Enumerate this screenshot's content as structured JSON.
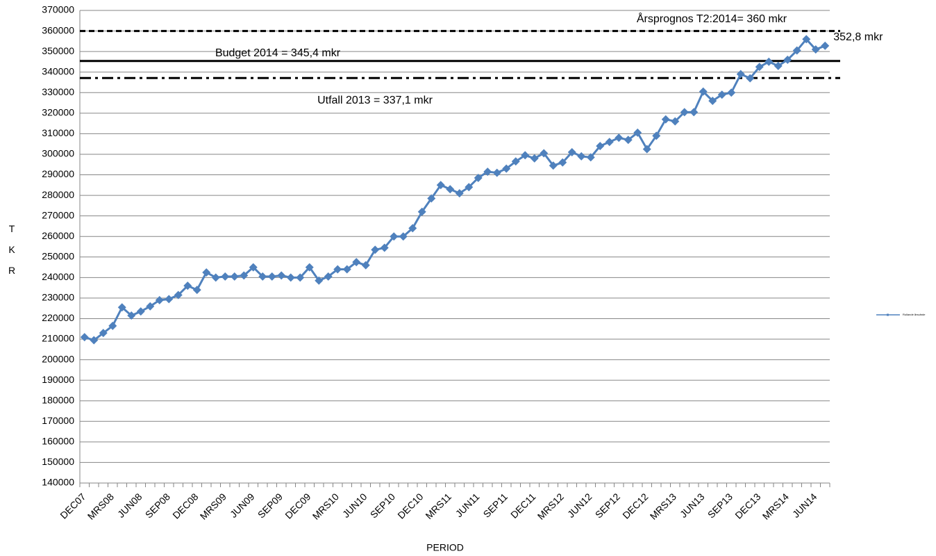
{
  "chart_data": {
    "type": "line",
    "x_label": "PERIOD",
    "y_label": "TKR",
    "categories": [
      "DEC07",
      null,
      null,
      "MRS08",
      null,
      null,
      "JUN08",
      null,
      null,
      "SEP08",
      null,
      null,
      "DEC08",
      null,
      null,
      "MRS09",
      null,
      null,
      "JUN09",
      null,
      null,
      "SEP09",
      null,
      null,
      "DEC09",
      null,
      null,
      "MRS10",
      null,
      null,
      "JUN10",
      null,
      null,
      "SEP10",
      null,
      null,
      "DEC10",
      null,
      null,
      "MRS11",
      null,
      null,
      "JUN11",
      null,
      null,
      "SEP11",
      null,
      null,
      "DEC11",
      null,
      null,
      "MRS12",
      null,
      null,
      "JUN12",
      null,
      null,
      "SEP12",
      null,
      null,
      "DEC12",
      null,
      null,
      "MRS13",
      null,
      null,
      "JUN13",
      null,
      null,
      "SEP13",
      null,
      null,
      "DEC13",
      null,
      null,
      "MRS14",
      null,
      null,
      "JUN14",
      null
    ],
    "series": [
      {
        "name": "Rullande årsvärde",
        "color": "#4f81bd",
        "values": [
          211000,
          209500,
          213000,
          216500,
          225500,
          221500,
          223500,
          226000,
          229000,
          229500,
          231500,
          236000,
          234000,
          242500,
          240000,
          240500,
          240500,
          241000,
          245000,
          240500,
          240500,
          241000,
          240000,
          240000,
          245000,
          238500,
          240500,
          244000,
          244000,
          247500,
          246000,
          253500,
          254500,
          260000,
          260000,
          264000,
          272000,
          278500,
          285000,
          283000,
          281000,
          284000,
          288500,
          291500,
          291000,
          293000,
          296500,
          299500,
          298000,
          300500,
          294500,
          296000,
          301000,
          299000,
          298500,
          304000,
          306000,
          308000,
          307000,
          310500,
          302500,
          309000,
          317000,
          316000,
          320500,
          320500,
          330500,
          326000,
          329000,
          330000,
          339000,
          337000,
          342500,
          345000,
          343000,
          346000,
          350500,
          356000,
          351000,
          352800
        ],
        "value_labels": [
          null,
          null,
          null,
          null,
          null,
          null,
          null,
          null,
          null,
          null,
          null,
          null,
          null,
          null,
          null,
          null,
          null,
          null,
          null,
          null,
          null,
          null,
          null,
          null,
          null,
          null,
          null,
          null,
          null,
          null,
          null,
          null,
          null,
          null,
          null,
          null,
          null,
          null,
          null,
          null,
          null,
          null,
          null,
          null,
          null,
          null,
          null,
          null,
          null,
          null,
          null,
          null,
          null,
          null,
          null,
          null,
          null,
          null,
          null,
          null,
          null,
          null,
          null,
          null,
          null,
          null,
          null,
          null,
          null,
          null,
          null,
          null,
          null,
          null,
          null,
          null,
          null,
          null,
          null,
          "352,8 mkr"
        ]
      }
    ],
    "reference_lines": [
      {
        "label": "Årsprognos  T2:2014= 360 mkr",
        "value": 360000,
        "style": "dashed"
      },
      {
        "label": "Budget 2014 = 345,4 mkr",
        "value": 345400,
        "style": "solid"
      },
      {
        "label": "Utfall 2013 = 337,1 mkr",
        "value": 337100,
        "style": "dashdot"
      }
    ],
    "ylim": [
      140000,
      370000
    ],
    "yticks": [
      140000,
      150000,
      160000,
      170000,
      180000,
      190000,
      200000,
      210000,
      220000,
      230000,
      240000,
      250000,
      260000,
      270000,
      280000,
      290000,
      300000,
      310000,
      320000,
      330000,
      340000,
      350000,
      360000,
      370000
    ],
    "grid": true,
    "legend": "right"
  }
}
